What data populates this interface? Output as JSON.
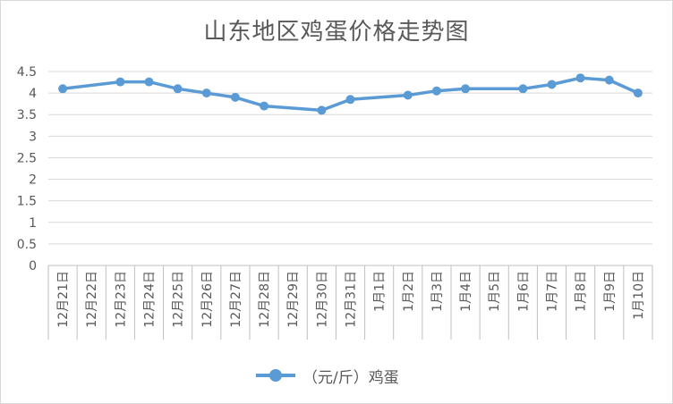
{
  "chart_data": {
    "type": "line",
    "title": "山东地区鸡蛋价格走势图",
    "categories": [
      "12月21日",
      "12月22日",
      "12月23日",
      "12月24日",
      "12月25日",
      "12月26日",
      "12月27日",
      "12月28日",
      "12月29日",
      "12月30日",
      "12月31日",
      "1月1日",
      "1月2日",
      "1月3日",
      "1月4日",
      "1月5日",
      "1月6日",
      "1月7日",
      "1月8日",
      "1月9日",
      "1月10日"
    ],
    "series": [
      {
        "name": "（元/斤）鸡蛋",
        "color": "#5b9bd5",
        "values": [
          4.1,
          null,
          4.26,
          4.26,
          4.1,
          4.0,
          3.9,
          3.7,
          null,
          3.6,
          3.85,
          null,
          3.95,
          4.05,
          4.1,
          null,
          4.1,
          4.2,
          4.35,
          4.3,
          4.0
        ]
      }
    ],
    "yticks": [
      "0",
      "0.5",
      "1",
      "1.5",
      "2",
      "2.5",
      "3",
      "3.5",
      "4",
      "4.5"
    ],
    "ylim": [
      0,
      4.5
    ],
    "grid": true,
    "legend": "bottom"
  }
}
